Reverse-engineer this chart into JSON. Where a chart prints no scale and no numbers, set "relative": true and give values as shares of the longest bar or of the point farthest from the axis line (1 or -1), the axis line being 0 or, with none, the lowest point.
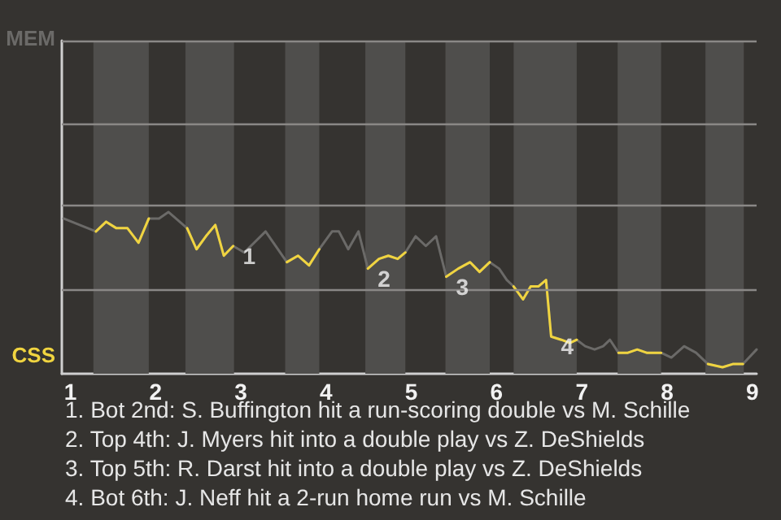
{
  "chart_data": {
    "type": "line",
    "relative": true,
    "x": [
      0.92,
      1.3,
      1.42,
      1.54,
      1.67,
      1.8,
      1.92,
      2.04,
      2.15,
      2.37,
      2.48,
      2.59,
      2.7,
      2.8,
      2.91,
      3.04,
      3.29,
      3.54,
      3.67,
      3.8,
      3.92,
      4.07,
      4.15,
      4.26,
      4.38,
      4.49,
      4.62,
      4.73,
      4.84,
      4.93,
      5.05,
      5.17,
      5.29,
      5.41,
      5.55,
      5.69,
      5.8,
      5.92,
      6.03,
      6.12,
      6.2,
      6.31,
      6.4,
      6.49,
      6.58,
      6.64,
      6.76,
      6.86,
      6.94,
      7.04,
      7.15,
      7.25,
      7.33,
      7.43,
      7.54,
      7.65,
      7.76,
      7.93,
      8.05,
      8.2,
      8.34,
      8.48,
      8.65,
      8.77,
      8.89,
      9.05
    ],
    "xlim": [
      0.9,
      9.05
    ],
    "xticks": [
      1,
      2,
      3,
      4,
      5,
      6,
      7,
      8,
      9
    ],
    "series": [
      {
        "color": "#6b6a68",
        "values": [
          0.96,
          0.88,
          0.94,
          0.9,
          0.9,
          0.81,
          0.96,
          0.96,
          1,
          0.9,
          0.77,
          0.85,
          0.92,
          0.73,
          0.79,
          0.75,
          0.88,
          0.69,
          0.73,
          0.67,
          0.77,
          0.88,
          0.88,
          0.77,
          0.88,
          0.65,
          0.71,
          0.73,
          0.71,
          0.75,
          0.85,
          0.79,
          0.85,
          0.6,
          0.65,
          0.69,
          0.63,
          0.69,
          0.65,
          0.58,
          0.54,
          0.46,
          0.54,
          0.54,
          0.58,
          0.23,
          0.21,
          0.19,
          0.21,
          0.17,
          0.15,
          0.17,
          0.21,
          0.13,
          0.13,
          0.15,
          0.13,
          0.13,
          0.1,
          0.17,
          0.13,
          0.06,
          0.04,
          0.06,
          0.06,
          0.15
        ]
      },
      {
        "color": "#f0d440",
        "values": [
          null,
          0.88,
          0.94,
          0.9,
          0.9,
          0.81,
          0.96,
          null,
          null,
          0.9,
          0.77,
          0.85,
          0.92,
          0.73,
          0.79,
          null,
          null,
          0.69,
          0.73,
          0.67,
          0.77,
          null,
          null,
          null,
          null,
          0.65,
          0.71,
          0.73,
          0.71,
          0.75,
          null,
          null,
          null,
          0.6,
          0.65,
          0.69,
          0.63,
          0.69,
          null,
          null,
          0.54,
          0.46,
          0.54,
          0.54,
          0.58,
          0.23,
          0.21,
          0.19,
          0.21,
          null,
          null,
          null,
          null,
          0.13,
          0.13,
          0.15,
          0.13,
          0.13,
          null,
          null,
          null,
          0.06,
          0.04,
          0.06,
          0.06,
          null
        ]
      }
    ],
    "ref_lines": [
      {
        "axis": "y",
        "value": 0.52,
        "color": "#8a8886"
      },
      {
        "axis": "y",
        "value": 1.04,
        "color": "#8a8886"
      },
      {
        "axis": "y",
        "value": 1.55,
        "color": "#8a8886"
      },
      {
        "axis": "y",
        "value": 2.06,
        "color": "#8a8886"
      }
    ],
    "bands": [
      {
        "axis": "x",
        "from": 1.27,
        "to": 1.92,
        "color": "#4f4e4c"
      },
      {
        "axis": "x",
        "from": 2.35,
        "to": 2.92,
        "color": "#4f4e4c"
      },
      {
        "axis": "x",
        "from": 3.52,
        "to": 3.92,
        "color": "#4f4e4c"
      },
      {
        "axis": "x",
        "from": 4.46,
        "to": 4.93,
        "color": "#4f4e4c"
      },
      {
        "axis": "x",
        "from": 5.4,
        "to": 5.92,
        "color": "#4f4e4c"
      },
      {
        "axis": "x",
        "from": 6.2,
        "to": 6.94,
        "color": "#4f4e4c"
      },
      {
        "axis": "x",
        "from": 7.42,
        "to": 7.93,
        "color": "#4f4e4c"
      },
      {
        "axis": "x",
        "from": 8.45,
        "to": 8.9,
        "color": "#4f4e4c"
      }
    ],
    "annotations": [
      "MEM",
      "CSS",
      "1. Bot 2nd: S. Buffington hit a run-scoring double vs M. Schille",
      "2. Top 4th: J. Myers hit into a double play vs Z. DeShields",
      "3. Top 5th: R. Darst hit into a double play vs Z. DeShields",
      "4. Bot 6th: J. Neff hit a 2-run home run vs M. Schille",
      {
        "text": "1",
        "x": 2.91,
        "y": 0.79
      },
      {
        "text": "2",
        "x": 4.49,
        "y": 0.65
      },
      {
        "text": "3",
        "x": 5.41,
        "y": 0.6
      },
      {
        "text": "4",
        "x": 6.64,
        "y": 0.23
      }
    ],
    "marker": "none"
  }
}
